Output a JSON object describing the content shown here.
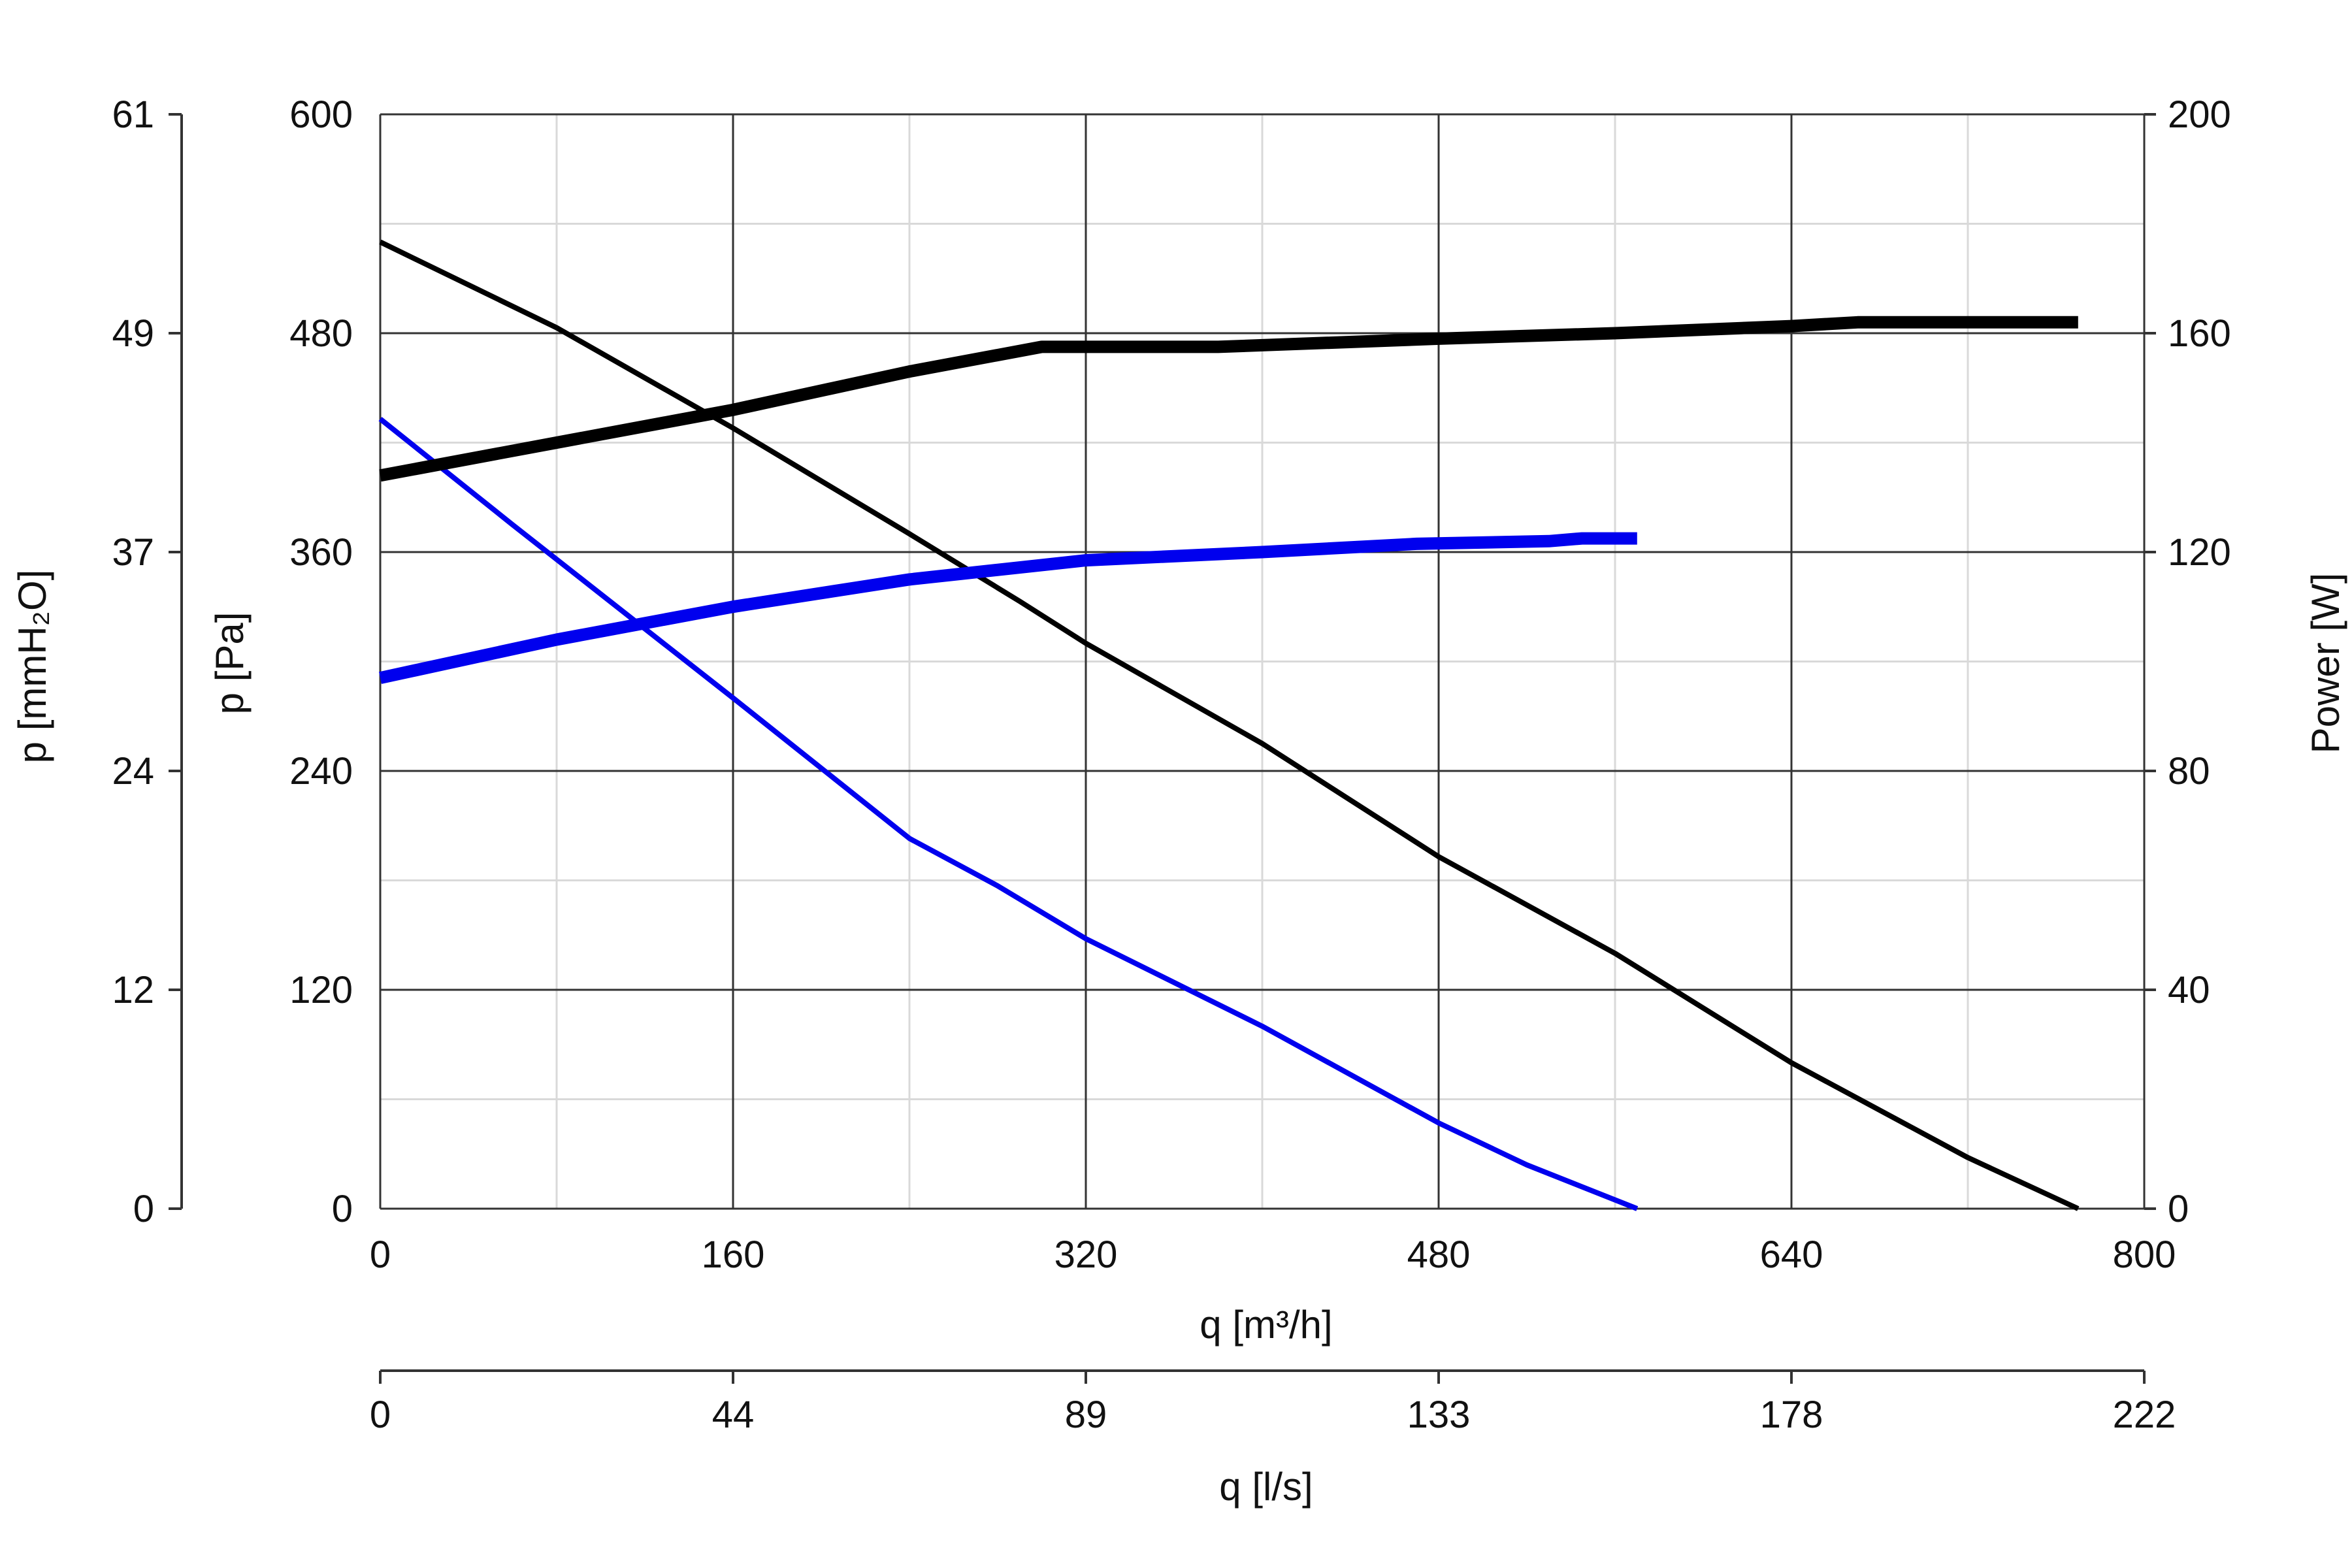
{
  "chart_data": {
    "type": "line",
    "grid": true,
    "x_axis_primary": {
      "label": "q [m³/h]",
      "range": [
        0,
        800
      ],
      "ticks": [
        "0",
        "160",
        "320",
        "480",
        "640",
        "800"
      ],
      "tick_values": [
        0,
        160,
        320,
        480,
        640,
        800
      ]
    },
    "x_axis_secondary": {
      "label": "q [l/s]",
      "range": [
        0,
        222
      ],
      "ticks": [
        "0",
        "44",
        "89",
        "133",
        "178",
        "222"
      ]
    },
    "y_axis_left_inner": {
      "label": "p [Pa]",
      "range": [
        0,
        600
      ],
      "ticks": [
        "0",
        "120",
        "240",
        "360",
        "480",
        "600"
      ],
      "tick_values": [
        0,
        120,
        240,
        360,
        480,
        600
      ]
    },
    "y_axis_left_outer": {
      "label": "p [mmH₂O]",
      "range": [
        0,
        61
      ],
      "ticks": [
        "0",
        "12",
        "24",
        "37",
        "49",
        "61"
      ]
    },
    "y_axis_right": {
      "label": "Power [W]",
      "range": [
        0,
        200
      ],
      "ticks": [
        "0",
        "40",
        "80",
        "120",
        "160",
        "200"
      ],
      "tick_values": [
        0,
        40,
        80,
        120,
        160,
        200
      ]
    },
    "series": [
      {
        "color": "#000000",
        "axis": "pressure",
        "weight": "thin",
        "points": [
          [
            0,
            530
          ],
          [
            80,
            483
          ],
          [
            160,
            428
          ],
          [
            240,
            370
          ],
          [
            290,
            333
          ],
          [
            320,
            310
          ],
          [
            400,
            255
          ],
          [
            480,
            193
          ],
          [
            560,
            140
          ],
          [
            640,
            80
          ],
          [
            720,
            28
          ],
          [
            770,
            0
          ]
        ]
      },
      {
        "color": "#0000ee",
        "axis": "pressure",
        "weight": "thin",
        "points": [
          [
            0,
            433
          ],
          [
            60,
            375
          ],
          [
            120,
            318
          ],
          [
            160,
            280
          ],
          [
            240,
            203
          ],
          [
            280,
            177
          ],
          [
            320,
            148
          ],
          [
            400,
            100
          ],
          [
            480,
            47
          ],
          [
            520,
            24
          ],
          [
            570,
            0
          ]
        ]
      },
      {
        "color": "#000000",
        "axis": "power",
        "weight": "bold",
        "points": [
          [
            0,
            134
          ],
          [
            80,
            140
          ],
          [
            160,
            146
          ],
          [
            240,
            153
          ],
          [
            300,
            157.5
          ],
          [
            380,
            157.5
          ],
          [
            480,
            159
          ],
          [
            560,
            160
          ],
          [
            640,
            161.3
          ],
          [
            670,
            162
          ],
          [
            770,
            162
          ]
        ]
      },
      {
        "color": "#0000ee",
        "axis": "power",
        "weight": "bold",
        "points": [
          [
            0,
            97
          ],
          [
            80,
            104
          ],
          [
            160,
            110
          ],
          [
            240,
            115
          ],
          [
            320,
            118.5
          ],
          [
            400,
            120
          ],
          [
            470,
            121.5
          ],
          [
            530,
            122
          ],
          [
            545,
            122.5
          ],
          [
            570,
            122.5
          ]
        ]
      }
    ]
  }
}
